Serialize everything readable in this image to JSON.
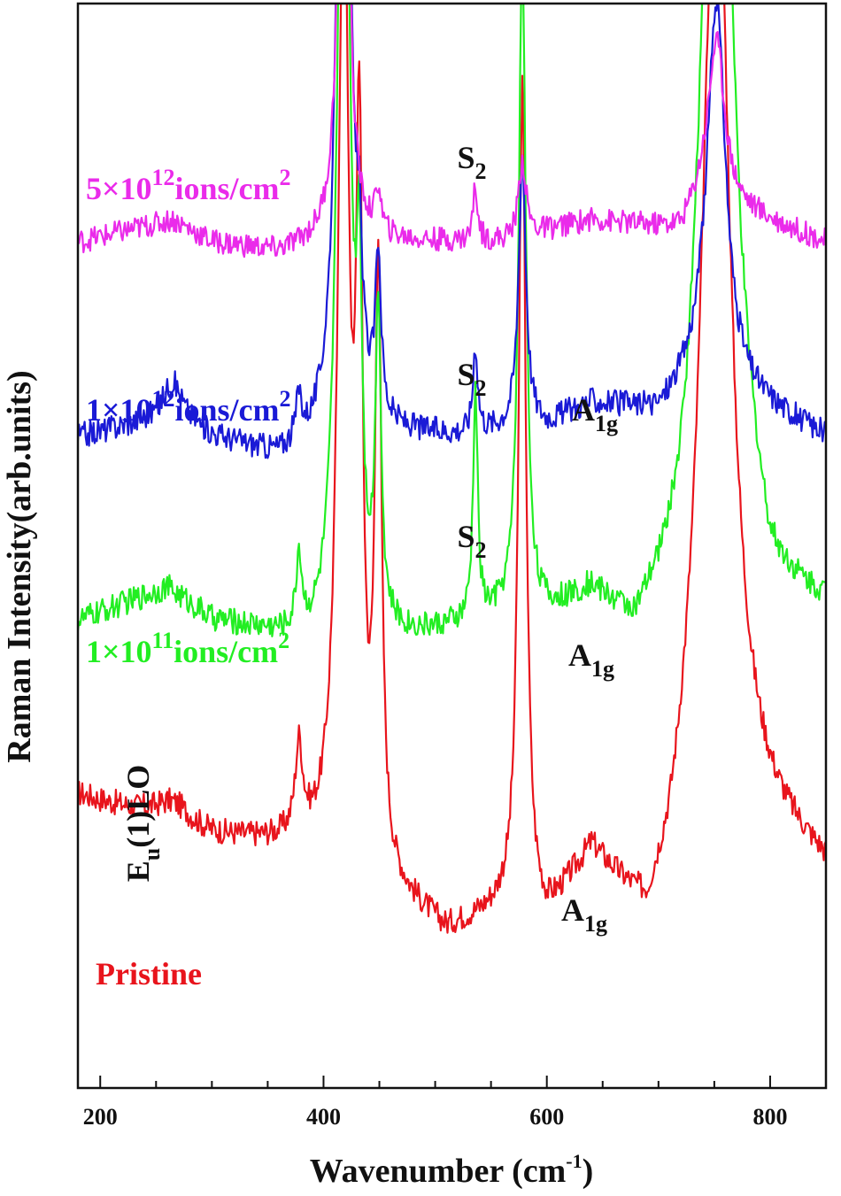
{
  "chart_data": {
    "type": "line",
    "title": "",
    "xlabel": "Wavenumber (cm",
    "xlabel_sup": "-1",
    "xlabel_end": ")",
    "ylabel": "Raman Intensity(arb.units)",
    "xlim": [
      180,
      850
    ],
    "xticks": [
      200,
      400,
      600,
      800
    ],
    "grid": false,
    "series": [
      {
        "name": "Pristine",
        "color": "#e8141c",
        "baseline": 0.27,
        "level_points": [
          [
            180,
            0.27
          ],
          [
            300,
            0.23
          ],
          [
            380,
            0.22
          ],
          [
            400,
            0.21
          ],
          [
            470,
            0.17
          ],
          [
            510,
            0.14
          ],
          [
            560,
            0.16
          ],
          [
            600,
            0.15
          ],
          [
            640,
            0.21
          ],
          [
            690,
            0.14
          ],
          [
            710,
            0.18
          ],
          [
            740,
            0.3
          ],
          [
            800,
            0.24
          ],
          [
            850,
            0.2
          ]
        ],
        "peaks": [
          [
            378,
            0.08,
            4
          ],
          [
            418,
            0.9,
            6
          ],
          [
            432,
            0.6,
            3.5
          ],
          [
            449,
            0.55,
            3.5
          ],
          [
            578,
            0.76,
            4
          ],
          [
            752,
            0.9,
            14
          ],
          [
            265,
            0.02,
            20
          ]
        ],
        "noise": 0.012,
        "clip": 0.0
      },
      {
        "name": "1×10¹¹ions/cm²",
        "color": "#22ee22",
        "baseline": 0.42,
        "level_points": [
          [
            180,
            0.43
          ],
          [
            260,
            0.46
          ],
          [
            300,
            0.43
          ],
          [
            340,
            0.42
          ],
          [
            395,
            0.4
          ],
          [
            470,
            0.41
          ],
          [
            520,
            0.42
          ],
          [
            560,
            0.43
          ],
          [
            600,
            0.43
          ],
          [
            640,
            0.45
          ],
          [
            680,
            0.41
          ],
          [
            720,
            0.46
          ],
          [
            760,
            0.58
          ],
          [
            800,
            0.45
          ],
          [
            850,
            0.44
          ]
        ],
        "peaks": [
          [
            378,
            0.07,
            3
          ],
          [
            418,
            1.0,
            6
          ],
          [
            432,
            0.27,
            3
          ],
          [
            449,
            0.29,
            3
          ],
          [
            536,
            0.21,
            2.5
          ],
          [
            578,
            0.6,
            4
          ],
          [
            752,
            0.9,
            14
          ]
        ],
        "noise": 0.012,
        "clip": 0.0
      },
      {
        "name": "1×10¹²ions/cm²",
        "color": "#1a1ad6",
        "baseline": 0.6,
        "level_points": [
          [
            180,
            0.6
          ],
          [
            265,
            0.62
          ],
          [
            300,
            0.6
          ],
          [
            360,
            0.58
          ],
          [
            400,
            0.59
          ],
          [
            470,
            0.6
          ],
          [
            520,
            0.6
          ],
          [
            600,
            0.61
          ],
          [
            640,
            0.63
          ],
          [
            700,
            0.62
          ],
          [
            740,
            0.66
          ],
          [
            770,
            0.64
          ],
          [
            850,
            0.6
          ]
        ],
        "peaks": [
          [
            378,
            0.04,
            3
          ],
          [
            418,
            0.95,
            6
          ],
          [
            432,
            0.1,
            3
          ],
          [
            449,
            0.15,
            3
          ],
          [
            536,
            0.08,
            2.5
          ],
          [
            578,
            0.25,
            4
          ],
          [
            752,
            0.35,
            10
          ],
          [
            265,
            0.03,
            10
          ]
        ],
        "noise": 0.012,
        "clip": 0.0
      },
      {
        "name": "5×10¹²ions/cm²",
        "color": "#ea2bea",
        "baseline": 0.78,
        "level_points": [
          [
            180,
            0.78
          ],
          [
            265,
            0.8
          ],
          [
            300,
            0.78
          ],
          [
            360,
            0.77
          ],
          [
            400,
            0.78
          ],
          [
            470,
            0.78
          ],
          [
            560,
            0.78
          ],
          [
            640,
            0.8
          ],
          [
            720,
            0.79
          ],
          [
            740,
            0.82
          ],
          [
            770,
            0.81
          ],
          [
            850,
            0.78
          ]
        ],
        "peaks": [
          [
            418,
            0.6,
            5
          ],
          [
            449,
            0.04,
            3
          ],
          [
            536,
            0.05,
            2.5
          ],
          [
            578,
            0.07,
            4
          ],
          [
            752,
            0.15,
            9
          ]
        ],
        "noise": 0.011,
        "clip": 0.0
      }
    ],
    "annotations": [
      {
        "text": "Pristine",
        "color": "#e8141c"
      },
      {
        "text": "1×10",
        "sup": "11",
        "text2": "ions/cm",
        "sup2": "2",
        "color": "#22ee22"
      },
      {
        "text": "1×10",
        "sup": "12",
        "text2": "ions/cm",
        "sup2": "2",
        "color": "#1a1ad6"
      },
      {
        "text": "5×10",
        "sup": "12",
        "text2": "ions/cm",
        "sup2": "2",
        "color": "#ea2bea"
      },
      {
        "text": "S",
        "sub": "2",
        "color": "#111111"
      },
      {
        "text": "S",
        "sub": "2",
        "color": "#111111"
      },
      {
        "text": "S",
        "sub": "2",
        "color": "#111111"
      },
      {
        "text": "A",
        "sub": "1g",
        "color": "#111111"
      },
      {
        "text": "A",
        "sub": "1g",
        "color": "#111111"
      },
      {
        "text": "A",
        "sub": "1g",
        "color": "#111111"
      },
      {
        "text": "E",
        "sub": "u",
        "text2": "(1)LO",
        "color": "#111111"
      }
    ]
  }
}
